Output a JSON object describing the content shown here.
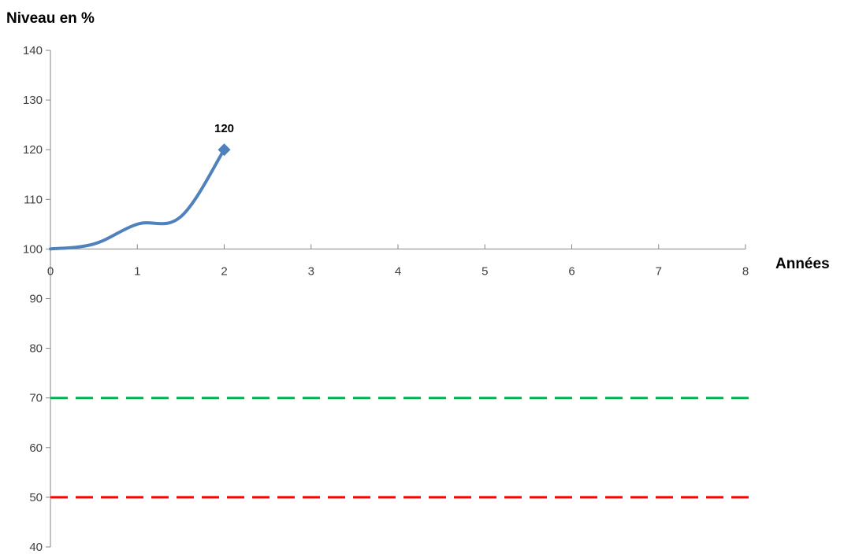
{
  "chart_data": {
    "type": "line",
    "title": "",
    "ylabel": "Niveau en %",
    "xlabel": "Années",
    "xlim": [
      0,
      8
    ],
    "ylim": [
      40,
      140
    ],
    "x_ticks": [
      "0",
      "1",
      "2",
      "3",
      "4",
      "5",
      "6",
      "7",
      "8"
    ],
    "y_ticks": [
      "40",
      "50",
      "60",
      "70",
      "80",
      "90",
      "100",
      "110",
      "120",
      "130",
      "140"
    ],
    "grid": false,
    "series": [
      {
        "x": [
          0,
          0.5,
          1,
          1.5,
          2
        ],
        "y": [
          100,
          101,
          105,
          106.5,
          120
        ],
        "color": "#4F81BD",
        "smooth": true
      }
    ],
    "data_labels": [
      {
        "x": 2,
        "y": 120,
        "text": "120"
      }
    ],
    "reference_lines": [
      {
        "y": 70,
        "color": "#00B050",
        "style": "dashed"
      },
      {
        "y": 50,
        "color": "#FF0000",
        "style": "dashed"
      }
    ]
  }
}
